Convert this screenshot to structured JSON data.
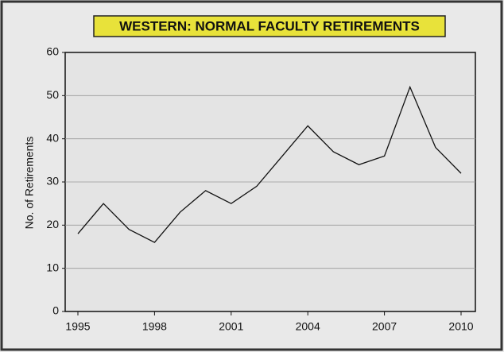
{
  "chart_data": {
    "type": "line",
    "title": "WESTERN:  NORMAL FACULTY RETIREMENTS",
    "y_label": "No. of Retirements",
    "x": [
      1995,
      1996,
      1997,
      1998,
      1999,
      2000,
      2001,
      2002,
      2003,
      2004,
      2005,
      2006,
      2007,
      2008,
      2009,
      2010
    ],
    "series": [
      {
        "name": "Retirements",
        "color": "#111111",
        "values": [
          18,
          25,
          19,
          16,
          23,
          28,
          25,
          29,
          36,
          43,
          37,
          34,
          36,
          52,
          38,
          32
        ]
      }
    ],
    "xlim": [
      1995,
      2010
    ],
    "xticks": [
      1995,
      1998,
      2001,
      2004,
      2007,
      2010
    ],
    "ylim": [
      0,
      60
    ],
    "yticks": [
      0,
      10,
      20,
      30,
      40,
      50,
      60
    ],
    "grid": true
  }
}
